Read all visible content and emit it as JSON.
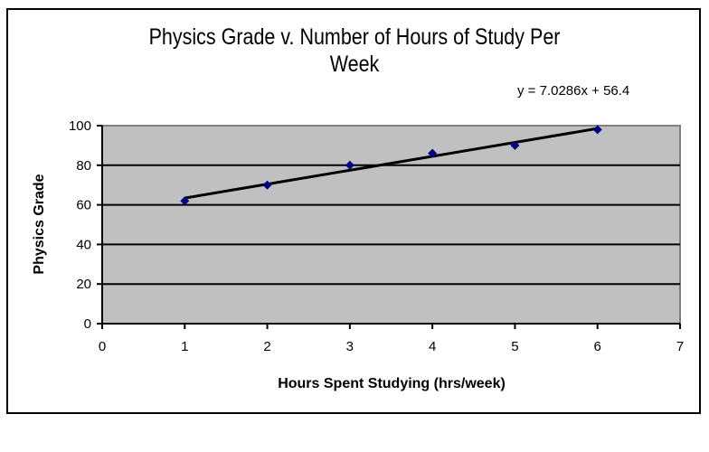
{
  "chart_data": {
    "type": "scatter",
    "title": "Physics Grade v. Number of Hours of Study Per Week",
    "title_lines": [
      "Physics Grade v. Number of Hours of Study Per",
      "Week"
    ],
    "xlabel": "Hours Spent Studying (hrs/week)",
    "ylabel": "Physics Grade",
    "x": [
      1,
      2,
      3,
      4,
      5,
      6
    ],
    "series": [
      {
        "name": "Physics Grade",
        "values": [
          62,
          70,
          80,
          86,
          90,
          98
        ],
        "marker": "diamond",
        "color": "#000080"
      }
    ],
    "trendline": {
      "type": "linear",
      "equation": "y = 7.0286x + 56.4",
      "slope": 7.0286,
      "intercept": 56.4,
      "color": "#000000"
    },
    "xlim": [
      0,
      7
    ],
    "ylim": [
      0,
      100
    ],
    "xticks": [
      "0",
      "1",
      "2",
      "3",
      "4",
      "5",
      "6",
      "7"
    ],
    "yticks": [
      "0",
      "20",
      "40",
      "60",
      "80",
      "100"
    ],
    "grid": {
      "horizontal": true,
      "vertical": false
    },
    "plot_background": "#c0c0c0",
    "legend": null
  }
}
